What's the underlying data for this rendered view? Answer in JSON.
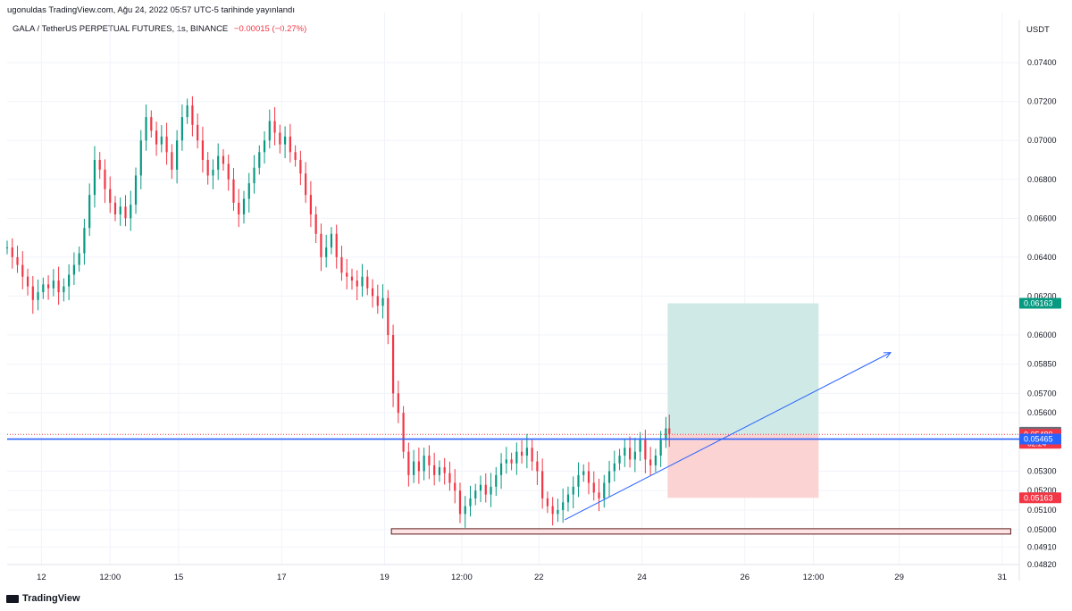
{
  "header": {
    "published": "ugonuldas TradingView.com, Ağu 24, 2022 05:57 UTC-5 tarihinde yayınlandı",
    "symbol": "GALA / TetherUS PERPETUAL FUTURES, 1s, BINANCE",
    "change": "−0.00015 (−0.27%)",
    "currency": "USDT"
  },
  "footer": {
    "brand": "TradingView",
    "logo_icon": "tradingview-logo-icon"
  },
  "colors": {
    "up": "#089981",
    "down": "#f23645",
    "grid": "#f0f3fa",
    "hline": "#2962ff",
    "trend": "#2962ff",
    "profit_zone": "#cfeae6",
    "loss_zone": "#fbd3d3",
    "support_zone": "#fde3e3",
    "support_border": "#5b1a1a"
  },
  "chart_data": {
    "type": "candlestick",
    "title": "GALA / TetherUS PERPETUAL FUTURES, 1s, BINANCE",
    "xlabel": "",
    "ylabel": "USDT",
    "ylim": [
      0.0482,
      0.0752
    ],
    "price_axis_ticks": [
      0.074,
      0.072,
      0.07,
      0.068,
      0.066,
      0.064,
      0.062,
      0.06,
      0.0585,
      0.057,
      0.056,
      0.053,
      0.052,
      0.051,
      0.05,
      0.0491,
      0.0482
    ],
    "time_axis_labels": [
      "12",
      "12:00",
      "15",
      "17",
      "19",
      "12:00",
      "22",
      "24",
      "26",
      "12:00",
      "29",
      "31"
    ],
    "time_axis_index": [
      2,
      6,
      10,
      16,
      22,
      26.5,
      31,
      37,
      43,
      47,
      52,
      58
    ],
    "price_labels": [
      {
        "value": 0.06163,
        "text": "0.06163",
        "color": "#089981"
      },
      {
        "value": 0.055,
        "text": "0.05500",
        "color": "#6a6d78"
      },
      {
        "value": 0.05489,
        "text": "0.05489",
        "sub": "02:24",
        "color": "#f23645"
      },
      {
        "value": 0.05465,
        "text": "0.05465",
        "color": "#2962ff"
      },
      {
        "value": 0.05163,
        "text": "0.05163",
        "color": "#f23645"
      }
    ],
    "horizontal_line": 0.05465,
    "dotted_line": 0.05489,
    "position": {
      "entry": 0.05489,
      "target": 0.06163,
      "stop": 0.05163,
      "start_index": 38.5,
      "end_index": 47.3
    },
    "support_zone": {
      "top": 0.04995,
      "bottom": 0.04985,
      "start_index": 22.4,
      "end_index": 58.5
    },
    "trendline": {
      "from": [
        32.5,
        0.0505
      ],
      "to": [
        51.5,
        0.0591
      ]
    },
    "candle_index_range": [
      0,
      38.6
    ],
    "series": [
      {
        "name": "GALA/USDT",
        "points": [
          [
            0,
            0.0645
          ],
          [
            0.3,
            0.064
          ],
          [
            0.6,
            0.0636
          ],
          [
            0.9,
            0.063
          ],
          [
            1.2,
            0.0625
          ],
          [
            1.5,
            0.0618
          ],
          [
            1.8,
            0.0622
          ],
          [
            2.1,
            0.0626
          ],
          [
            2.4,
            0.0624
          ],
          [
            2.7,
            0.0628
          ],
          [
            3.0,
            0.0622
          ],
          [
            3.3,
            0.0625
          ],
          [
            3.6,
            0.0631
          ],
          [
            3.9,
            0.0636
          ],
          [
            4.2,
            0.0642
          ],
          [
            4.5,
            0.0655
          ],
          [
            4.8,
            0.0672
          ],
          [
            5.1,
            0.069
          ],
          [
            5.4,
            0.0685
          ],
          [
            5.7,
            0.0675
          ],
          [
            6.0,
            0.0668
          ],
          [
            6.3,
            0.0662
          ],
          [
            6.6,
            0.0666
          ],
          [
            6.9,
            0.066
          ],
          [
            7.2,
            0.0667
          ],
          [
            7.5,
            0.0682
          ],
          [
            7.8,
            0.07
          ],
          [
            8.1,
            0.0712
          ],
          [
            8.4,
            0.0705
          ],
          [
            8.7,
            0.0698
          ],
          [
            9.0,
            0.0702
          ],
          [
            9.3,
            0.0694
          ],
          [
            9.6,
            0.0685
          ],
          [
            9.9,
            0.07
          ],
          [
            10.2,
            0.0712
          ],
          [
            10.5,
            0.0718
          ],
          [
            10.8,
            0.0708
          ],
          [
            11.1,
            0.07
          ],
          [
            11.4,
            0.069
          ],
          [
            11.7,
            0.0682
          ],
          [
            12.0,
            0.0685
          ],
          [
            12.3,
            0.0692
          ],
          [
            12.6,
            0.0688
          ],
          [
            12.9,
            0.068
          ],
          [
            13.2,
            0.0668
          ],
          [
            13.5,
            0.0662
          ],
          [
            13.8,
            0.067
          ],
          [
            14.1,
            0.0678
          ],
          [
            14.4,
            0.0686
          ],
          [
            14.7,
            0.0694
          ],
          [
            15.0,
            0.07
          ],
          [
            15.3,
            0.071
          ],
          [
            15.6,
            0.0704
          ],
          [
            15.9,
            0.0698
          ],
          [
            16.2,
            0.0702
          ],
          [
            16.5,
            0.0694
          ],
          [
            16.8,
            0.069
          ],
          [
            17.1,
            0.0683
          ],
          [
            17.4,
            0.0672
          ],
          [
            17.7,
            0.0662
          ],
          [
            18.0,
            0.0652
          ],
          [
            18.3,
            0.064
          ],
          [
            18.6,
            0.0645
          ],
          [
            18.9,
            0.0652
          ],
          [
            19.2,
            0.064
          ],
          [
            19.5,
            0.0632
          ],
          [
            19.8,
            0.063
          ],
          [
            20.1,
            0.0628
          ],
          [
            20.4,
            0.0625
          ],
          [
            20.7,
            0.063
          ],
          [
            21.0,
            0.0624
          ],
          [
            21.3,
            0.062
          ],
          [
            21.6,
            0.0615
          ],
          [
            21.9,
            0.0619
          ],
          [
            22.2,
            0.06
          ],
          [
            22.5,
            0.057
          ],
          [
            22.8,
            0.056
          ],
          [
            23.1,
            0.054
          ],
          [
            23.4,
            0.0528
          ],
          [
            23.7,
            0.0535
          ],
          [
            24.0,
            0.053
          ],
          [
            24.3,
            0.0538
          ],
          [
            24.6,
            0.0533
          ],
          [
            24.9,
            0.0528
          ],
          [
            25.2,
            0.0532
          ],
          [
            25.5,
            0.0529
          ],
          [
            25.8,
            0.0524
          ],
          [
            26.1,
            0.052
          ],
          [
            26.4,
            0.0508
          ],
          [
            26.7,
            0.0512
          ],
          [
            27.0,
            0.0516
          ],
          [
            27.3,
            0.052
          ],
          [
            27.6,
            0.0523
          ],
          [
            27.9,
            0.0518
          ],
          [
            28.2,
            0.0522
          ],
          [
            28.5,
            0.0528
          ],
          [
            28.8,
            0.0534
          ],
          [
            29.1,
            0.0536
          ],
          [
            29.4,
            0.0534
          ],
          [
            29.7,
            0.054
          ],
          [
            30.0,
            0.0538
          ],
          [
            30.3,
            0.0542
          ],
          [
            30.6,
            0.0535
          ],
          [
            30.9,
            0.053
          ],
          [
            31.2,
            0.0516
          ],
          [
            31.5,
            0.0512
          ],
          [
            31.8,
            0.0508
          ],
          [
            32.1,
            0.051
          ],
          [
            32.4,
            0.0514
          ],
          [
            32.7,
            0.0518
          ],
          [
            33.0,
            0.0522
          ],
          [
            33.3,
            0.0528
          ],
          [
            33.6,
            0.053
          ],
          [
            33.9,
            0.0524
          ],
          [
            34.2,
            0.0519
          ],
          [
            34.5,
            0.0516
          ],
          [
            34.8,
            0.0524
          ],
          [
            35.1,
            0.053
          ],
          [
            35.4,
            0.0534
          ],
          [
            35.7,
            0.0538
          ],
          [
            36.0,
            0.0542
          ],
          [
            36.3,
            0.0536
          ],
          [
            36.6,
            0.054
          ],
          [
            36.9,
            0.0546
          ],
          [
            37.2,
            0.0536
          ],
          [
            37.5,
            0.0533
          ],
          [
            37.8,
            0.0538
          ],
          [
            38.1,
            0.0546
          ],
          [
            38.4,
            0.0552
          ],
          [
            38.6,
            0.0549
          ]
        ]
      }
    ]
  }
}
